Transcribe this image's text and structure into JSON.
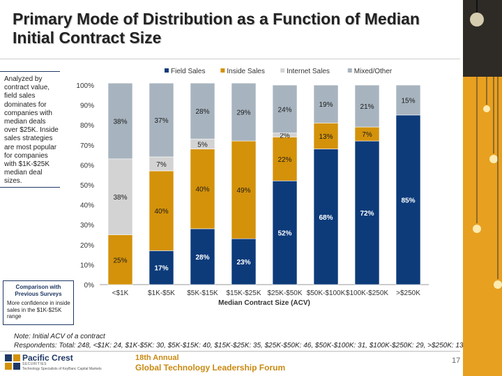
{
  "title": "Primary Mode of Distribution as a Function of Median Initial Contract Size",
  "side_note": "Analyzed by contract value, field sales dominates for companies with median deals over $25K. Inside sales strategies are most popular for companies with $1K-$25K median deal sizes.",
  "comparison": {
    "title": "Comparison with Previous Surveys",
    "text": "More confidence in inside sales in the $1K-$25K range"
  },
  "footnote": {
    "line1": "Note: Initial ACV of a contract",
    "line2": "Respondents: Total: 248, <$1K: 24, $1K-$5K: 30, $5K-$15K: 40, $15K-$25K: 35, $25K-$50K: 46, $50K-$100K: 31, $100K-$250K: 29, >$250K: 13"
  },
  "footer": {
    "logo_name": "Pacific Crest",
    "logo_sub": "SECURITIES",
    "logo_sub2": "Technology Specialists of KeyBanc Capital Markets",
    "annual": "18th Annual",
    "forum": "Global Technology Leadership Forum",
    "page": "17"
  },
  "colors": {
    "field": "#0d3b7a",
    "inside": "#d4920a",
    "internet": "#d3d3d3",
    "mixed": "#a7b4bf",
    "panel": "#e8a020"
  },
  "chart_data": {
    "type": "bar",
    "stacked": true,
    "xlabel": "Median Contract Size (ACV)",
    "ylabel": "",
    "ylim": [
      0,
      100
    ],
    "yticks": [
      "0%",
      "10%",
      "20%",
      "30%",
      "40%",
      "50%",
      "60%",
      "70%",
      "80%",
      "90%",
      "100%"
    ],
    "categories": [
      "<$1K",
      "$1K-$5K",
      "$5K-$15K",
      "$15K-$25K",
      "$25K-$50K",
      "$50K-$100K",
      "$100K-$250K",
      ">$250K"
    ],
    "series": [
      {
        "name": "Field Sales",
        "key": "field",
        "values": [
          0,
          17,
          28,
          23,
          52,
          68,
          72,
          85
        ],
        "labels": [
          "",
          "17%",
          "28%",
          "23%",
          "52%",
          "68%",
          "72%",
          "85%"
        ]
      },
      {
        "name": "Inside Sales",
        "key": "inside",
        "values": [
          25,
          40,
          40,
          49,
          22,
          13,
          7,
          0
        ],
        "labels": [
          "25%",
          "40%",
          "40%",
          "49%",
          "22%",
          "13%",
          "7%",
          ""
        ]
      },
      {
        "name": "Internet Sales",
        "key": "internet",
        "values": [
          38,
          7,
          5,
          0,
          2,
          0,
          0,
          0
        ],
        "labels": [
          "38%",
          "7%",
          "5%",
          "",
          "2%",
          "",
          "",
          ""
        ]
      },
      {
        "name": "Mixed/Other",
        "key": "mixed",
        "values": [
          38,
          37,
          28,
          29,
          24,
          19,
          21,
          15
        ],
        "labels": [
          "38%",
          "37%",
          "28%",
          "29%",
          "24%",
          "19%",
          "21%",
          "15%"
        ]
      }
    ]
  }
}
